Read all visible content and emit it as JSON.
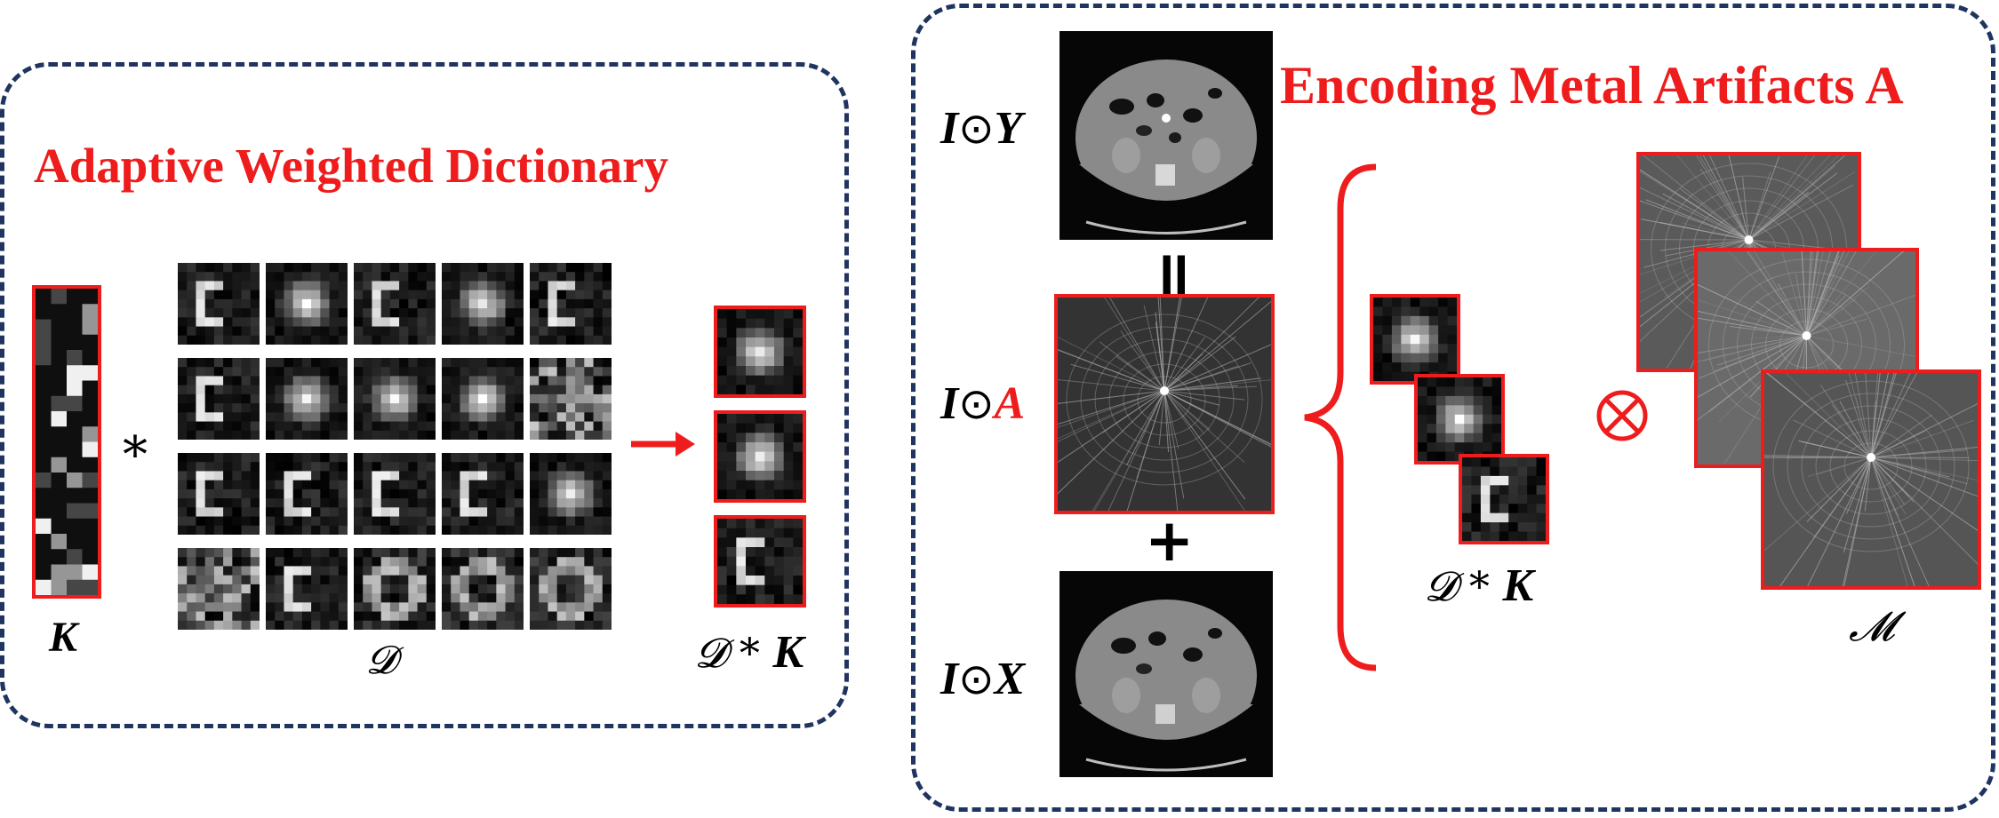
{
  "left_panel": {
    "title": "Adaptive Weighted Dictionary",
    "k_label": "K",
    "convolution_symbol": "*",
    "d_label": "𝓓",
    "result_label_d": "𝓓",
    "result_label_op": " * ",
    "result_label_k": "K"
  },
  "right_panel": {
    "title": "Encoding Metal Artifacts A",
    "iy_prefix": "I",
    "iy_op": "⊙",
    "iy_var": "Y",
    "ia_prefix": "I",
    "ia_op": "⊙",
    "ia_var": "A",
    "ix_prefix": "I",
    "ix_op": "⊙",
    "ix_var": "X",
    "equals_symbol": "=",
    "plus_symbol": "+",
    "dk_label_d": "𝓓",
    "dk_label_op": " * ",
    "dk_label_k": "K",
    "otimes_symbol": "⊗",
    "m_label": "𝓜"
  },
  "colors": {
    "accent_red": "#ee1c1c",
    "border_navy": "#1f3560"
  }
}
